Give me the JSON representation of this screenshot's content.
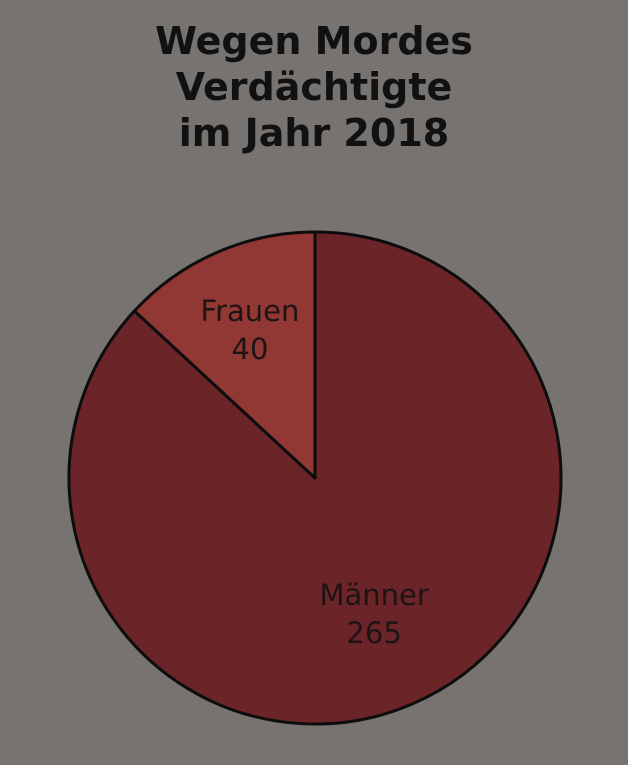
{
  "colors": {
    "background": "#767370",
    "stroke": "#0d0d0d",
    "label_text": "#1e1414"
  },
  "chart_data": {
    "type": "pie",
    "title_lines": [
      "Wegen Mordes",
      "Verdächtigte",
      "im Jahr 2018"
    ],
    "slices": [
      {
        "label": "Männer",
        "value": 265,
        "value_label": "265",
        "color": "#6b2427"
      },
      {
        "label": "Frauen",
        "value": 40,
        "value_label": "40",
        "color": "#923834"
      }
    ],
    "legend": "none"
  }
}
